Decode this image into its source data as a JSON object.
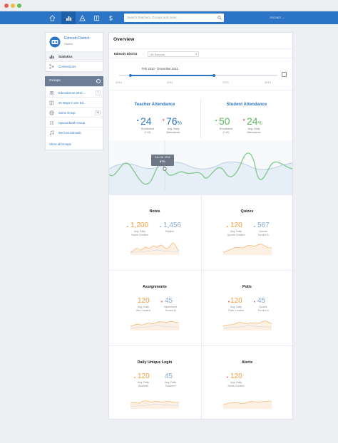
{
  "window": {
    "dots": [
      "#ec5d58",
      "#f3bc3e",
      "#5fc250"
    ]
  },
  "nav": {
    "tabs": [
      {
        "name": "home-icon"
      },
      {
        "name": "statistics-icon",
        "active": true
      },
      {
        "name": "shapes-icon"
      },
      {
        "name": "book-icon"
      },
      {
        "name": "dollar-icon"
      }
    ],
    "search_placeholder": "Search Teachers, Groups and more",
    "account_label": "Account"
  },
  "sidebar": {
    "district_name": "Edmodo District",
    "district_sub": "District",
    "items": [
      {
        "label": "Statistics",
        "icon": "bar-chart-icon",
        "active": true
      },
      {
        "label": "Connections",
        "icon": "share-icon"
      }
    ],
    "groups_title": "Groups",
    "groups": [
      {
        "label": "EdmodoCon 2012 ...",
        "count": "7",
        "icon": "people-icon"
      },
      {
        "label": "20 Ways to use Ed...",
        "icon": "book-icon"
      },
      {
        "label": "Some Group",
        "count": "18",
        "icon": "globe-icon"
      },
      {
        "label": "Special Math Group",
        "icon": "dots-icon"
      },
      {
        "label": "We love Edmodo",
        "icon": "music-icon"
      }
    ],
    "show_all": "Show all Groups"
  },
  "overview": {
    "title": "Overview",
    "filter_label": "Edmodo District",
    "filter_sep": "›",
    "filter_select": "All Schools",
    "range_label": "Feb 2010 - December 2011",
    "years": [
      "2010",
      "2011",
      "2012",
      "2013"
    ],
    "range_fraction": {
      "start": 0.07,
      "end": 0.6
    }
  },
  "attendance": {
    "teacher": {
      "title": "Teacher Attendance",
      "enrollment": "24",
      "enrollment_label": "Enrollment",
      "enrollment_delta": "(+12)",
      "daily": "76",
      "daily_unit": "%",
      "daily_label_1": "Avg. Daily",
      "daily_label_2": "Attendance"
    },
    "student": {
      "title": "Student Attendance",
      "enrollment": "50",
      "enrollment_label": "Enrollment",
      "enrollment_delta": "(+12)",
      "daily": "24",
      "daily_unit": "%",
      "daily_label_1": "Avg. Daily",
      "daily_label_2": "Attendance"
    },
    "tooltip_date": "Feb 08, 2011",
    "tooltip_value": "87%",
    "colors": {
      "teacher": "#2c74c5",
      "student": "#5cb85c"
    }
  },
  "metrics": [
    {
      "title": "Notes",
      "a_value": "1,200",
      "a_label_1": "Avg. Daily",
      "a_label_2": "Notes Created",
      "b_value": "1,456",
      "b_label_1": "Replies",
      "b_label_2": "",
      "a_arrow": "up",
      "b_arrow": "up"
    },
    {
      "title": "Quizes",
      "a_value": "120",
      "a_label_1": "Avg. Daily",
      "a_label_2": "Quizes Created",
      "b_value": "567",
      "b_label_1": "Quizes",
      "b_label_2": "Turned In",
      "a_arrow": "up",
      "b_arrow": "up"
    },
    {
      "title": "Assignments",
      "a_value": "120",
      "a_label_1": "Avg. Daily",
      "a_label_2": "Ass Created",
      "b_value": "45",
      "b_label_1": "Assesment",
      "b_label_2": "Turned In",
      "a_arrow": "none",
      "b_arrow": "down"
    },
    {
      "title": "Polls",
      "a_value": "120",
      "a_label_1": "Avg. Daily",
      "a_label_2": "Polls Created",
      "b_value": "45",
      "b_label_1": "Quizes",
      "b_label_2": "Turned In",
      "a_arrow": "down",
      "b_arrow": "down"
    },
    {
      "title": "Daily Unique Login",
      "a_value": "120",
      "a_label_1": "Avg. Daily",
      "a_label_2": "Students",
      "b_value": "45",
      "b_label_1": "Avg. Daily",
      "b_label_2": "Teachers",
      "a_arrow": "up",
      "b_arrow": "none"
    },
    {
      "title": "Alerts",
      "a_value": "120",
      "a_label_1": "Avg. Daily",
      "a_label_2": "Alerts Created",
      "b_value": "",
      "b_label_1": "",
      "b_label_2": "",
      "a_arrow": "down",
      "b_arrow": "none"
    }
  ]
}
